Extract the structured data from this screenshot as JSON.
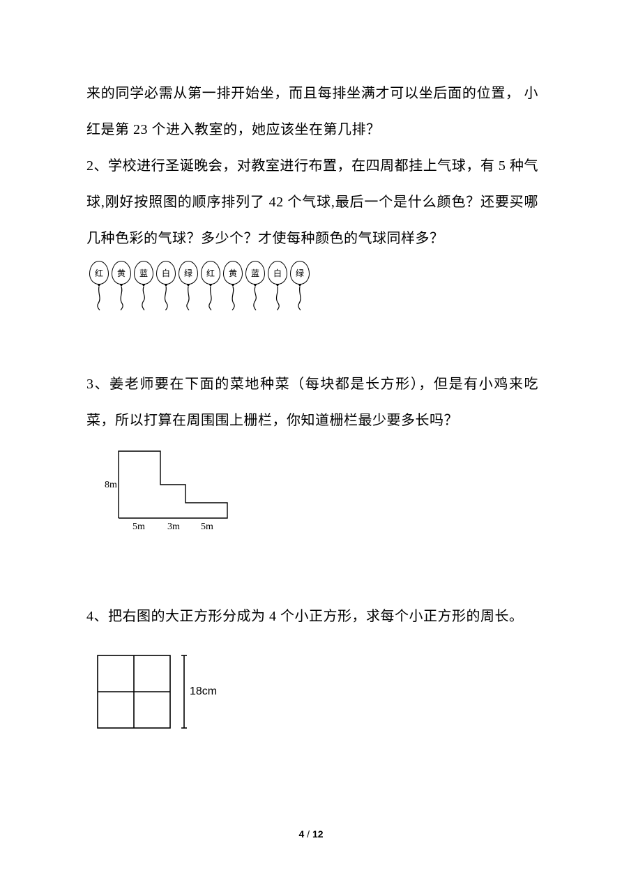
{
  "para1_line1": "来的同学必需从第一排开始坐，而且每排坐满才可以坐后面的位置，",
  "para1_line2": "小红是第 23 个进入教室的，她应该坐在第几排？",
  "para2": "2、学校进行圣诞晚会，对教室进行布置，在四周都挂上气球，有 5 种气球,刚好按照图的顺序排列了 42 个气球,最后一个是什么颜色？还要买哪几种色彩的气球？多少个？才使每种颜色的气球同样多？",
  "balloons": [
    "红",
    "黄",
    "蓝",
    "白",
    "绿",
    "红",
    "黄",
    "蓝",
    "白",
    "绿"
  ],
  "para3": "3、姜老师要在下面的菜地种菜（每块都是长方形），但是有小鸡来吃菜，所以打算在周围围上栅栏，你知道栅栏最少要多长吗？",
  "step_diagram": {
    "left_label": "8m",
    "bottom_labels": [
      "5m",
      "3m",
      "5m"
    ],
    "stroke": "#000000",
    "stroke_width": 1.4
  },
  "para4": "4、把右图的大正方形分成为 4 个小正方形，求每个小正方形的周长。",
  "square_diagram": {
    "side_label": "18cm",
    "stroke": "#000000",
    "stroke_width": 1.6
  },
  "footer_page": "4",
  "footer_sep": " / ",
  "footer_total": "12",
  "colors": {
    "text": "#000000",
    "background": "#ffffff"
  },
  "font_sizes": {
    "body": 20,
    "balloon_label": 12,
    "diagram_label": 14,
    "footer": 14
  }
}
